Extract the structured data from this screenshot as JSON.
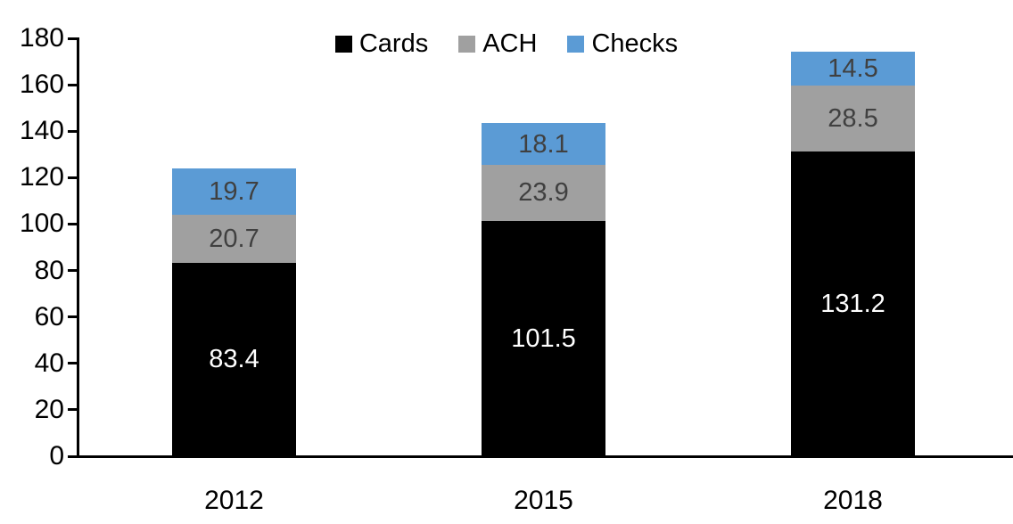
{
  "chart_data": {
    "type": "bar",
    "stacked": true,
    "title": "",
    "xlabel": "",
    "ylabel": "",
    "categories": [
      "2012",
      "2015",
      "2018"
    ],
    "series": [
      {
        "name": "Cards",
        "color": "#000000",
        "label_color": "#ffffff",
        "values": [
          83.4,
          101.5,
          131.2
        ]
      },
      {
        "name": "ACH",
        "color": "#A0A0A0",
        "label_color": "#404040",
        "values": [
          20.7,
          23.9,
          28.5
        ]
      },
      {
        "name": "Checks",
        "color": "#5B9BD5",
        "label_color": "#404040",
        "values": [
          19.7,
          18.1,
          14.5
        ]
      }
    ],
    "value_labels": {
      "2012": {
        "Cards": "83.4",
        "ACH": "20.7",
        "Checks": "19.7"
      },
      "2015": {
        "Cards": "101.5",
        "ACH": "23.9",
        "Checks": "18.1"
      },
      "2018": {
        "Cards": "131.2",
        "ACH": "28.5",
        "Checks": "14.5"
      }
    },
    "ylim": [
      0,
      180
    ],
    "yticks": [
      0,
      20,
      40,
      60,
      80,
      100,
      120,
      140,
      160,
      180
    ],
    "grid": false,
    "legend_position": "top-center",
    "axis_color": "#000000"
  }
}
